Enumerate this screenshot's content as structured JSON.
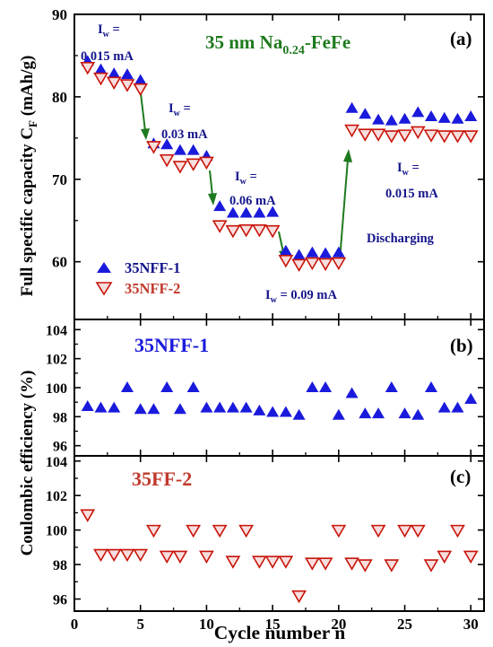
{
  "colors": {
    "blue": "#1a1adc",
    "red": "#c8140a",
    "green": "#1e7a1e",
    "navy": "#14148c",
    "red_label": "#c0392b",
    "red_fill": "#f7dede"
  },
  "x_axis": {
    "label": "Cycle number n",
    "ticks": [
      "0",
      "5",
      "10",
      "15",
      "20",
      "25",
      "30"
    ],
    "xlim": [
      0,
      31
    ]
  },
  "y_axis_label_a_main": "Full specific capacity C",
  "y_axis_label_a_sub": "F",
  "y_axis_label_a_unit": " (mAh/g)",
  "y_axis_label_bc": "Coulombic efficiency (%)",
  "chart_data": [
    {
      "panel": "(a)",
      "type": "scatter",
      "title_main": "35 nm Na",
      "title_sub": "0.24",
      "title_end": "-FeFe",
      "ylim": [
        53,
        90
      ],
      "yticks": [
        "60",
        "70",
        "80",
        "90"
      ],
      "legend_position": "bottom-left",
      "legend": [
        "35NFF-1",
        "35NFF-2"
      ],
      "series": [
        {
          "name": "35NFF-1",
          "marker": "triangle-up",
          "x": [
            1,
            2,
            3,
            4,
            5,
            6,
            7,
            8,
            9,
            10,
            11,
            12,
            13,
            14,
            15,
            16,
            17,
            18,
            19,
            20,
            21,
            22,
            23,
            24,
            25,
            26,
            27,
            28,
            29,
            30
          ],
          "values": [
            84.3,
            83.3,
            82.8,
            82.7,
            82.0,
            74.3,
            74.2,
            73.5,
            73.5,
            72.8,
            66.7,
            65.9,
            65.9,
            65.9,
            66.0,
            61.3,
            60.8,
            61.1,
            61.0,
            61.1,
            78.6,
            77.9,
            77.2,
            77.1,
            77.3,
            78.1,
            77.6,
            77.4,
            77.3,
            77.6
          ]
        },
        {
          "name": "35NFF-2",
          "marker": "triangle-down",
          "x": [
            1,
            2,
            3,
            4,
            5,
            6,
            7,
            8,
            9,
            10,
            11,
            12,
            13,
            14,
            15,
            16,
            17,
            18,
            19,
            20,
            21,
            22,
            23,
            24,
            25,
            26,
            27,
            28,
            29,
            30
          ],
          "values": [
            83.6,
            82.3,
            81.8,
            81.5,
            81.0,
            74.0,
            72.4,
            71.6,
            71.9,
            72.1,
            64.4,
            63.8,
            63.9,
            63.9,
            63.8,
            60.2,
            59.7,
            59.9,
            59.8,
            59.9,
            76.0,
            75.5,
            75.5,
            75.3,
            75.4,
            75.8,
            75.4,
            75.3,
            75.3,
            75.3
          ]
        }
      ],
      "annotations": [
        {
          "text": "I",
          "sub": "w",
          "text2": " =",
          "line2": "0.015 mA"
        },
        {
          "text": "I",
          "sub": "w",
          "text2": " =",
          "line2": "0.03 mA"
        },
        {
          "text": "I",
          "sub": "w",
          "text2": " =",
          "line2": "0.06 mA"
        },
        {
          "text": "I",
          "sub": "w",
          "text2": " = 0.09 mA",
          "line2": ""
        },
        {
          "text": "I",
          "sub": "w",
          "text2": " =",
          "line2": "0.015 mA"
        },
        {
          "text": "Discharging",
          "sub": "",
          "text2": "",
          "line2": ""
        }
      ]
    },
    {
      "panel": "(b)",
      "type": "scatter",
      "label": "35NFF-1",
      "ylim": [
        95.3,
        104.7
      ],
      "yticks": [
        "96",
        "98",
        "100",
        "102",
        "104"
      ],
      "series": [
        {
          "name": "35NFF-1",
          "marker": "triangle-up",
          "x": [
            1,
            2,
            3,
            4,
            5,
            6,
            7,
            8,
            9,
            10,
            11,
            12,
            13,
            14,
            15,
            16,
            17,
            18,
            19,
            20,
            21,
            22,
            23,
            24,
            25,
            26,
            27,
            28,
            29,
            30
          ],
          "values": [
            98.7,
            98.6,
            98.6,
            100.0,
            98.5,
            98.5,
            100.0,
            98.5,
            100.0,
            98.6,
            98.6,
            98.6,
            98.6,
            98.4,
            98.3,
            98.3,
            98.1,
            100.0,
            100.0,
            98.1,
            99.6,
            98.2,
            98.2,
            100.0,
            98.2,
            98.1,
            100.0,
            98.6,
            98.6,
            99.2
          ]
        }
      ]
    },
    {
      "panel": "(c)",
      "type": "scatter",
      "label": "35FF-2",
      "ylim": [
        95.3,
        104.3
      ],
      "yticks": [
        "96",
        "98",
        "100",
        "102",
        "104"
      ],
      "series": [
        {
          "name": "35FF-2",
          "marker": "triangle-down",
          "x": [
            1,
            2,
            3,
            4,
            5,
            6,
            7,
            8,
            9,
            10,
            11,
            12,
            13,
            14,
            15,
            16,
            17,
            18,
            19,
            20,
            21,
            22,
            23,
            24,
            25,
            26,
            27,
            28,
            29,
            30
          ],
          "values": [
            100.9,
            98.6,
            98.6,
            98.6,
            98.6,
            100.0,
            98.5,
            98.5,
            100.0,
            98.5,
            100.0,
            98.2,
            100.0,
            98.2,
            98.2,
            98.2,
            96.2,
            98.1,
            98.1,
            100.0,
            98.1,
            98.0,
            100.0,
            98.0,
            100.0,
            100.0,
            98.0,
            98.5,
            100.0,
            98.5
          ]
        }
      ]
    }
  ]
}
